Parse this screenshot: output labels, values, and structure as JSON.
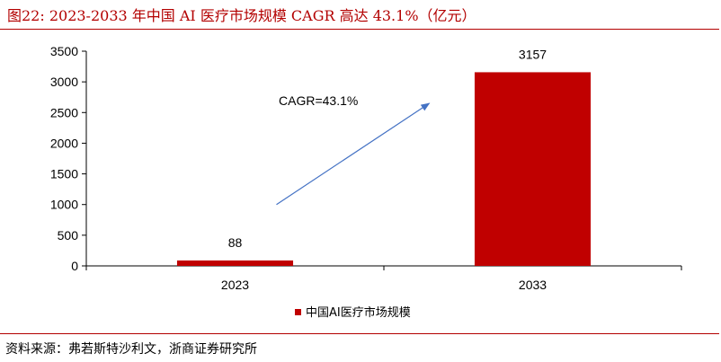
{
  "figure": {
    "title": "图22:   2023-2033 年中国 AI 医疗市场规模 CAGR 高达 43.1%（亿元）",
    "source": "资料来源：弗若斯特沙利文，浙商证券研究所"
  },
  "colors": {
    "accent": "#b30000",
    "bar": "#c00000",
    "arrow": "#4472c4"
  },
  "chart_data": {
    "type": "bar",
    "categories": [
      "2023",
      "2033"
    ],
    "series": [
      {
        "name": "中国AI医疗市场规模",
        "values": [
          88,
          3157
        ]
      }
    ],
    "data_labels": [
      "88",
      "3157"
    ],
    "ylim": [
      0,
      3500
    ],
    "yticks": [
      0,
      500,
      1000,
      1500,
      2000,
      2500,
      3000,
      3500
    ],
    "grid": false,
    "legend": "bottom",
    "annotation": {
      "text": "CAGR=43.1%",
      "from": [
        2023,
        1000
      ],
      "to": [
        2033,
        2650
      ]
    }
  }
}
